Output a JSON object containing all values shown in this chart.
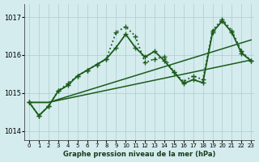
{
  "title": "Graphe pression niveau de la mer (hPa)",
  "background_color": "#d4ecee",
  "line_color": "#1a5c1a",
  "grid_color": "#b0cccc",
  "xlim": [
    -0.5,
    23.3
  ],
  "ylim": [
    1013.75,
    1017.35
  ],
  "yticks": [
    1014,
    1015,
    1016,
    1017
  ],
  "xticks": [
    0,
    1,
    2,
    3,
    4,
    5,
    6,
    7,
    8,
    9,
    10,
    11,
    12,
    13,
    14,
    15,
    16,
    17,
    18,
    19,
    20,
    21,
    22,
    23
  ],
  "series": [
    {
      "x": [
        0,
        1,
        2,
        3,
        4,
        5,
        6,
        7,
        8,
        9,
        10,
        11,
        12,
        13,
        14,
        15,
        16,
        17,
        18,
        19,
        20,
        21,
        22,
        23
      ],
      "y": [
        1014.75,
        1014.4,
        1014.65,
        1015.05,
        1015.25,
        1015.45,
        1015.6,
        1015.75,
        1015.9,
        1016.6,
        1016.75,
        1016.5,
        1015.8,
        1015.9,
        1015.95,
        1015.55,
        1015.3,
        1015.45,
        1015.35,
        1016.65,
        1016.95,
        1016.65,
        1016.1,
        1015.85
      ],
      "linestyle": ":",
      "linewidth": 1.3,
      "marker": "+",
      "markersize": 4,
      "zorder": 4
    },
    {
      "x": [
        0,
        1,
        2,
        3,
        4,
        5,
        6,
        7,
        8,
        9,
        10,
        11,
        12,
        13,
        14,
        15,
        16,
        17,
        18,
        19,
        20,
        21,
        22,
        23
      ],
      "y": [
        1014.75,
        1014.4,
        1014.65,
        1015.05,
        1015.2,
        1015.45,
        1015.6,
        1015.75,
        1015.9,
        1016.2,
        1016.55,
        1016.2,
        1015.95,
        1016.1,
        1015.85,
        1015.55,
        1015.25,
        1015.35,
        1015.27,
        1016.6,
        1016.9,
        1016.6,
        1016.05,
        1015.85
      ],
      "linestyle": "-",
      "linewidth": 1.3,
      "marker": "+",
      "markersize": 4,
      "zorder": 3
    },
    {
      "x": [
        0,
        2,
        23
      ],
      "y": [
        1014.75,
        1014.75,
        1016.4
      ],
      "linestyle": "-",
      "linewidth": 1.1,
      "marker": null,
      "markersize": 0,
      "zorder": 2
    },
    {
      "x": [
        0,
        2,
        23
      ],
      "y": [
        1014.75,
        1014.75,
        1015.87
      ],
      "linestyle": "-",
      "linewidth": 1.1,
      "marker": null,
      "markersize": 0,
      "zorder": 2
    }
  ]
}
